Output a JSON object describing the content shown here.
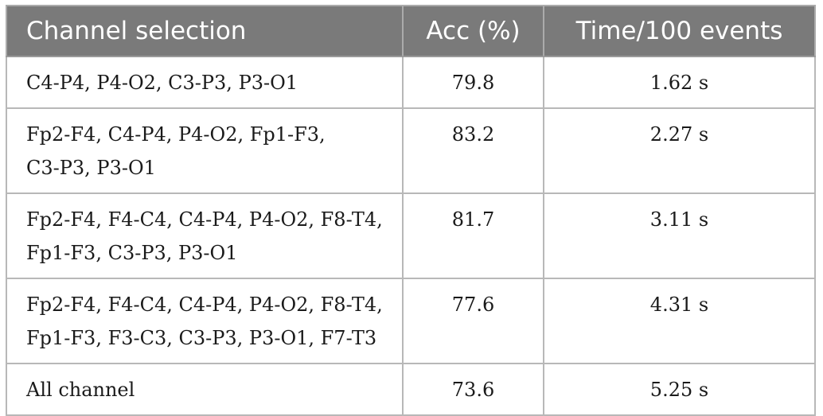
{
  "table": {
    "headers": [
      "Channel selection",
      "Acc (%)",
      "Time/100 events"
    ],
    "rows": [
      {
        "channels": [
          "C4-P4, P4-O2, C3-P3, P3-O1"
        ],
        "acc": "79.8",
        "time": "1.62 s"
      },
      {
        "channels": [
          "Fp2-F4, C4-P4, P4-O2, Fp1-F3,",
          "C3-P3, P3-O1"
        ],
        "acc": "83.2",
        "time": "2.27 s"
      },
      {
        "channels": [
          "Fp2-F4, F4-C4, C4-P4, P4-O2, F8-T4,",
          "Fp1-F3, C3-P3, P3-O1"
        ],
        "acc": "81.7",
        "time": "3.11 s"
      },
      {
        "channels": [
          "Fp2-F4, F4-C4, C4-P4, P4-O2, F8-T4,",
          "Fp1-F3, F3-C3, C3-P3, P3-O1, F7-T3"
        ],
        "acc": "77.6",
        "time": "4.31 s"
      },
      {
        "channels": [
          "All channel"
        ],
        "acc": "73.6",
        "time": "5.25 s"
      }
    ]
  },
  "colors": {
    "header_bg": "#7a7a7a",
    "header_text": "#ffffff",
    "grid": "#b8b8b8",
    "body_text": "#1a1a1a"
  }
}
